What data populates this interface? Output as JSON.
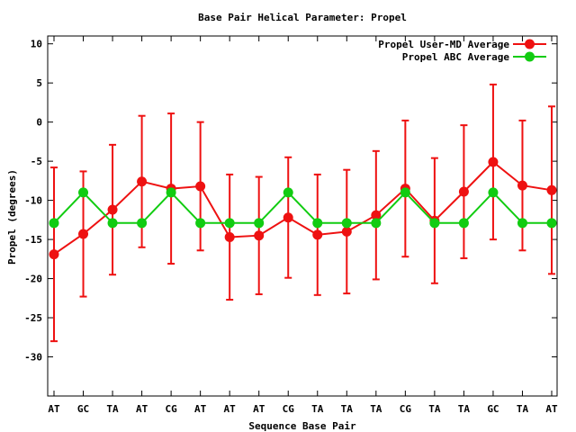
{
  "chart_data": {
    "type": "line",
    "title": "Base Pair Helical Parameter: Propel",
    "xlabel": "Sequence Base Pair",
    "ylabel": "Propel (degrees)",
    "categories": [
      "AT",
      "GC",
      "TA",
      "AT",
      "CG",
      "AT",
      "AT",
      "AT",
      "CG",
      "TA",
      "TA",
      "TA",
      "CG",
      "TA",
      "TA",
      "GC",
      "TA",
      "AT"
    ],
    "ylim": [
      -35,
      11
    ],
    "yticks": [
      10,
      5,
      0,
      -5,
      -10,
      -15,
      -20,
      -25,
      -30
    ],
    "legend_position": "top-right",
    "grid": false,
    "series": [
      {
        "name": "Propel User-MD Average",
        "color": "#ee1111",
        "values": [
          -16.9,
          -14.3,
          -11.2,
          -7.6,
          -8.5,
          -8.2,
          -14.7,
          -14.5,
          -12.2,
          -14.4,
          -14.0,
          -11.9,
          -8.5,
          -12.6,
          -8.9,
          -5.1,
          -8.1,
          -8.7
        ],
        "error": [
          11.1,
          8.0,
          8.3,
          8.4,
          9.6,
          8.2,
          8.0,
          7.5,
          7.7,
          7.7,
          7.9,
          8.2,
          8.7,
          8.0,
          8.5,
          9.9,
          8.3,
          10.7
        ]
      },
      {
        "name": "Propel ABC Average",
        "color": "#11cc11",
        "values": [
          -12.9,
          -9.0,
          -12.9,
          -12.9,
          -9.0,
          -12.9,
          -12.9,
          -12.9,
          -9.0,
          -12.9,
          -12.9,
          -12.9,
          -9.0,
          -12.9,
          -12.9,
          -9.0,
          -12.9,
          -12.9
        ]
      }
    ]
  }
}
